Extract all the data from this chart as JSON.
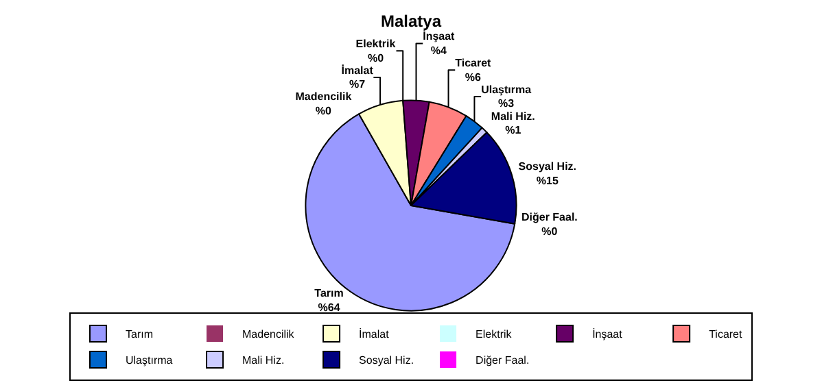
{
  "chart_data": {
    "type": "pie",
    "title": "Malatya",
    "categories": [
      "Tarım",
      "Madencilik",
      "İmalat",
      "Elektrik",
      "İnşaat",
      "Ticaret",
      "Ulaştırma",
      "Mali Hiz.",
      "Sosyal Hiz.",
      "Diğer Faal."
    ],
    "values": [
      64,
      0,
      7,
      0,
      4,
      6,
      3,
      1,
      15,
      0
    ],
    "value_labels": [
      "%64",
      "%0",
      "%7",
      "%0",
      "%4",
      "%6",
      "%3",
      "%1",
      "%15",
      "%0"
    ],
    "colors": [
      "#9999ff",
      "#993366",
      "#ffffcc",
      "#ccffff",
      "#660066",
      "#ff8080",
      "#0066cc",
      "#ccccff",
      "#000080",
      "#ff00ff"
    ],
    "legend": "bottom"
  }
}
